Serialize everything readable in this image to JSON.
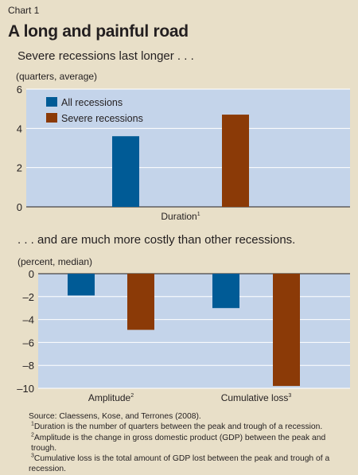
{
  "chart_label": "Chart 1",
  "title": "A long and painful road",
  "colors": {
    "all": "#005b96",
    "severe": "#8b3a07",
    "plot_bg": "#c4d4ea",
    "page_bg": "#e8dfc8"
  },
  "chart_data": [
    {
      "type": "bar",
      "subtitle": "Severe recessions last longer . . .",
      "unit": "(quarters, average)",
      "categories": [
        "Duration"
      ],
      "category_footnotes": [
        "1"
      ],
      "series": [
        {
          "name": "All recessions",
          "values": [
            3.6
          ]
        },
        {
          "name": "Severe recessions",
          "values": [
            4.7
          ]
        }
      ],
      "ylim": [
        0,
        6
      ],
      "yticks": [
        0,
        2,
        4,
        6
      ],
      "legend": "top-left",
      "grid": true
    },
    {
      "type": "bar",
      "subtitle": ". . . and are much more costly than other recessions.",
      "unit": "(percent, median)",
      "categories": [
        "Amplitude",
        "Cumulative loss"
      ],
      "category_footnotes": [
        "2",
        "3"
      ],
      "series": [
        {
          "name": "All recessions",
          "values": [
            -1.9,
            -3.0
          ]
        },
        {
          "name": "Severe recessions",
          "values": [
            -4.9,
            -9.8
          ]
        }
      ],
      "ylim": [
        -10,
        0
      ],
      "yticks": [
        0,
        -2,
        -4,
        -6,
        -8,
        -10
      ],
      "grid": true
    }
  ],
  "notes": {
    "source": "Source: Claessens, Kose, and Terrones (2008).",
    "footnotes": [
      {
        "mark": "1",
        "text": "Duration is the number of quarters between the peak and trough of a recession."
      },
      {
        "mark": "2",
        "text": "Amplitude is the change in gross domestic product (GDP) between the peak and trough."
      },
      {
        "mark": "3",
        "text": "Cumulative loss is the total amount of GDP lost between the peak and trough of a recession."
      }
    ]
  }
}
